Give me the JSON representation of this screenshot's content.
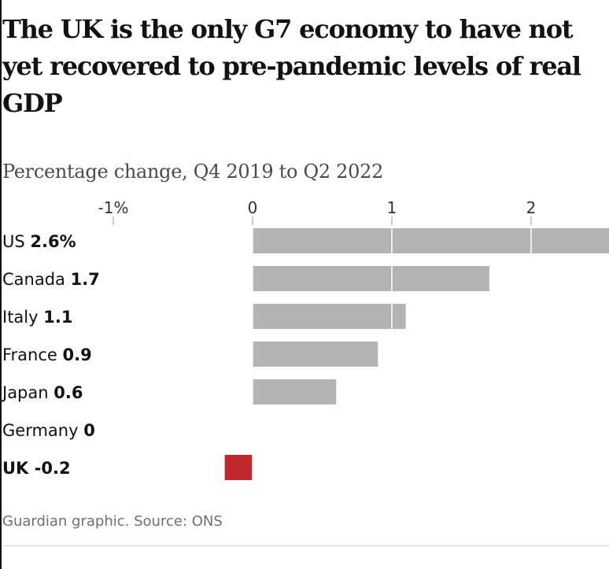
{
  "title": "The UK is the only G7 economy to have not yet recovered to pre-pandemic levels of real GDP",
  "subtitle": "Percentage change, Q4 2019 to Q2 2022",
  "source": "Guardian graphic. Source: ONS",
  "colors": {
    "bar": "#b3b3b3",
    "highlight": "#c1272d",
    "gridline": "#ffffff",
    "tick": "#999999"
  },
  "chart_data": {
    "type": "bar",
    "orientation": "horizontal",
    "title": "The UK is the only G7 economy to have not yet recovered to pre-pandemic levels of real GDP",
    "subtitle": "Percentage change, Q4 2019 to Q2 2022",
    "xlabel": "",
    "ylabel": "",
    "xlim": [
      -1,
      2.6
    ],
    "ticks": [
      {
        "value": -1,
        "label": "-1%"
      },
      {
        "value": 0,
        "label": "0"
      },
      {
        "value": 1,
        "label": "1"
      },
      {
        "value": 2,
        "label": "2"
      }
    ],
    "categories": [
      "US",
      "Canada",
      "Italy",
      "France",
      "Japan",
      "Germany",
      "UK"
    ],
    "values": [
      2.6,
      1.7,
      1.1,
      0.9,
      0.6,
      0,
      -0.2
    ],
    "value_labels": [
      "2.6%",
      "1.7",
      "1.1",
      "0.9",
      "0.6",
      "0",
      "-0.2"
    ],
    "highlight": [
      "UK"
    ]
  }
}
